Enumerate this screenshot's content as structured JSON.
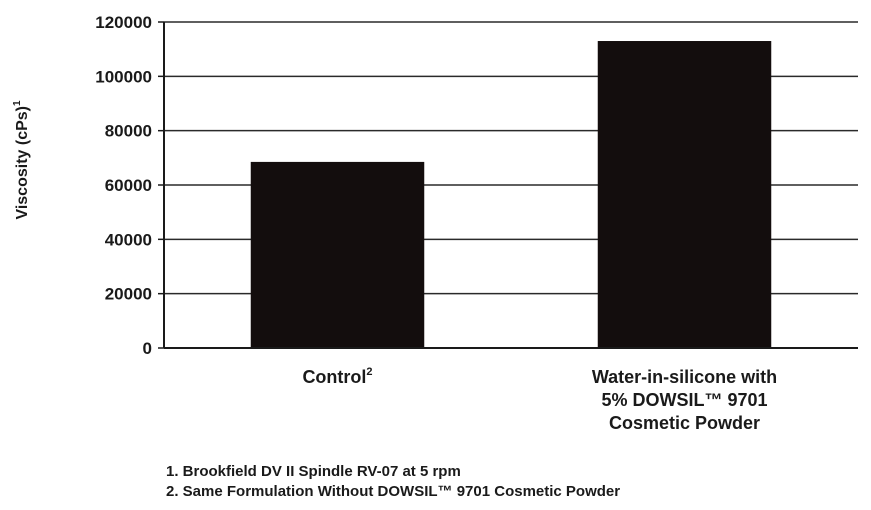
{
  "chart_data": {
    "type": "bar",
    "categories": [
      [
        "Control",
        "2"
      ],
      [
        "Water-in-silicone with",
        "5% DOWSIL™ 9701",
        "Cosmetic Powder"
      ]
    ],
    "values": [
      68500,
      113000
    ],
    "ylabel": "Viscosity (cPs)",
    "ylabel_sup": "1",
    "ylim": [
      0,
      120000
    ],
    "yticks": [
      0,
      20000,
      40000,
      60000,
      80000,
      100000,
      120000
    ],
    "grid": true,
    "bar_color": "#130d0d"
  },
  "footnotes": [
    "1. Brookfield DV II Spindle RV-07 at 5 rpm",
    "2. Same Formulation Without DOWSIL™ 9701 Cosmetic Powder"
  ]
}
